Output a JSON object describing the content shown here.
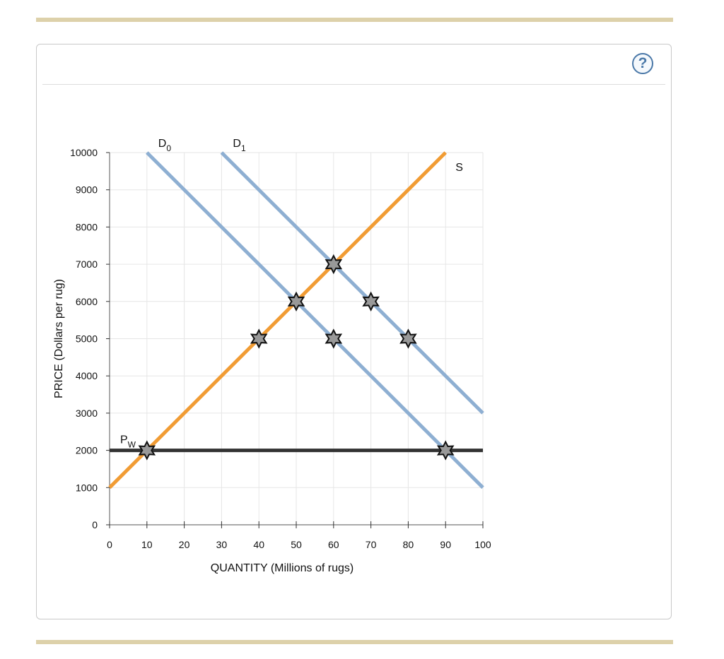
{
  "help": {
    "label": "?"
  },
  "colors": {
    "rule": "#ddd1aa",
    "demand": "#8eafd2",
    "supply": "#f19c34",
    "world_price": "#333333",
    "marker_fill": "#999999",
    "grid": "#e6e6e6",
    "help": "#4a78a8"
  },
  "chart_data": {
    "type": "line",
    "xlabel": "QUANTITY (Millions of rugs)",
    "ylabel": "PRICE (Dollars per rug)",
    "xlim": [
      0,
      100
    ],
    "ylim": [
      0,
      10000
    ],
    "x_ticks": [
      0,
      10,
      20,
      30,
      40,
      50,
      60,
      70,
      80,
      90,
      100
    ],
    "y_ticks": [
      0,
      1000,
      2000,
      3000,
      4000,
      5000,
      6000,
      7000,
      8000,
      9000,
      10000
    ],
    "x_tick_labels": [
      "0",
      "10",
      "20",
      "30",
      "40",
      "50",
      "60",
      "70",
      "80",
      "90",
      "100"
    ],
    "y_tick_labels": [
      "0",
      "1000",
      "2000",
      "3000",
      "4000",
      "5000",
      "6000",
      "7000",
      "8000",
      "9000",
      "10000"
    ],
    "grid": true,
    "series": [
      {
        "name": "D",
        "subscript": "0",
        "color": "#8eafd2",
        "points": [
          [
            10,
            10000
          ],
          [
            100,
            1000
          ]
        ]
      },
      {
        "name": "D",
        "subscript": "1",
        "color": "#8eafd2",
        "points": [
          [
            30,
            10000
          ],
          [
            100,
            3000
          ]
        ]
      },
      {
        "name": "S",
        "subscript": "",
        "color": "#f19c34",
        "points": [
          [
            0,
            1000
          ],
          [
            90,
            10000
          ]
        ]
      },
      {
        "name": "P",
        "subscript": "W",
        "color": "#333333",
        "points": [
          [
            0,
            2000
          ],
          [
            100,
            2000
          ]
        ]
      }
    ],
    "markers": [
      {
        "x": 10,
        "y": 2000
      },
      {
        "x": 40,
        "y": 5000
      },
      {
        "x": 50,
        "y": 6000
      },
      {
        "x": 60,
        "y": 7000
      },
      {
        "x": 60,
        "y": 5000
      },
      {
        "x": 70,
        "y": 6000
      },
      {
        "x": 80,
        "y": 5000
      },
      {
        "x": 90,
        "y": 2000
      }
    ]
  }
}
